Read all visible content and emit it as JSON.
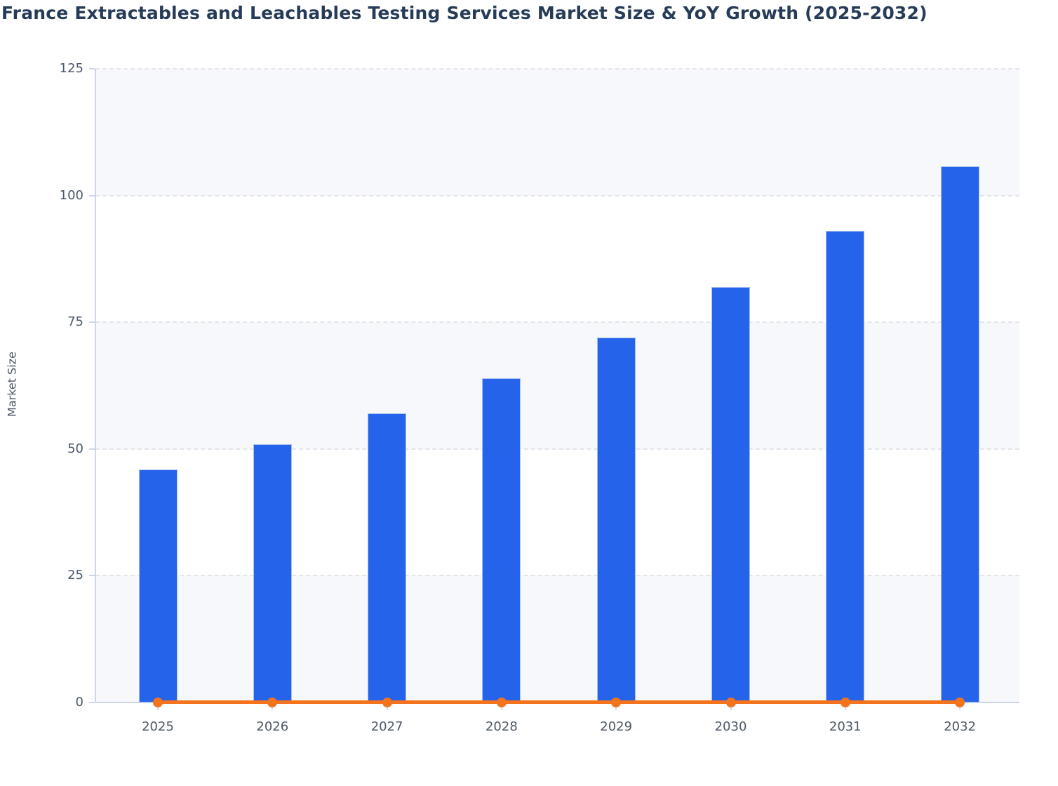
{
  "page": {
    "title": "France Extractables and Leachables Testing Services Market Size & YoY Growth (2025-2032)"
  },
  "chart_data": {
    "type": "bar",
    "title": "France Extractables and Leachables Testing Services Market Size & YoY Growth (2025-2032)",
    "categories": [
      "2025",
      "2026",
      "2027",
      "2028",
      "2029",
      "2030",
      "2031",
      "2032"
    ],
    "series": [
      {
        "name": "Market Size",
        "type": "bar",
        "color": "#2563eb",
        "values": [
          46,
          51,
          57,
          64,
          72,
          82,
          93,
          105.7
        ]
      },
      {
        "name": "YoY Growth",
        "type": "line",
        "color": "#f3741c",
        "values": [
          0,
          0,
          0,
          0,
          0,
          0,
          0,
          0
        ],
        "render_note": "flat line with circular markers sitting on the zero baseline"
      }
    ],
    "xlabel": "",
    "ylabel": "Market Size",
    "ylim": [
      0,
      125
    ],
    "yticks": [
      0,
      25,
      50,
      75,
      100,
      125
    ],
    "grid": "horizontal dashed lines at each y tick",
    "alternating_bands": [
      [
        0,
        25
      ],
      [
        50,
        75
      ],
      [
        100,
        125
      ]
    ],
    "legend_position": "none"
  },
  "colors": {
    "bar_fill": "#2563eb",
    "bar_border": "#a5c0f0",
    "line": "#f3741c",
    "band": "#f7f8fb",
    "gridline": "#e3e5ea",
    "axis_line": "#cdd5ee",
    "tick_label": "#4d5869",
    "title": "#263b57",
    "axis_title": "#4c5666"
  }
}
